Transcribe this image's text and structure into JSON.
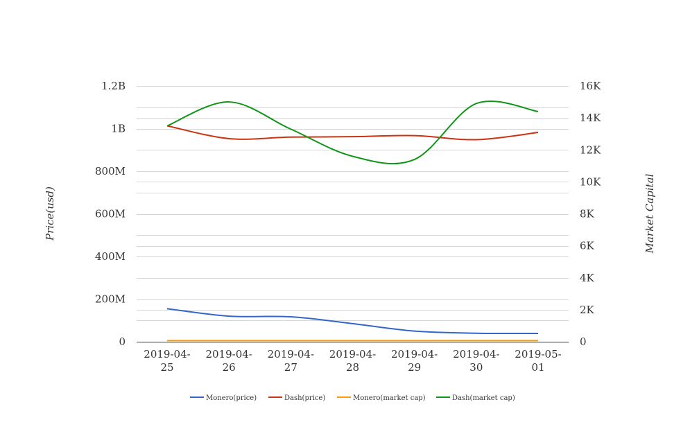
{
  "chart_data": {
    "type": "line",
    "x": [
      "2019-04-25",
      "2019-04-26",
      "2019-04-27",
      "2019-04-28",
      "2019-04-29",
      "2019-04-30",
      "2019-05-01"
    ],
    "x_tick_lines": [
      [
        "2019-04-",
        "25"
      ],
      [
        "2019-04-",
        "26"
      ],
      [
        "2019-04-",
        "27"
      ],
      [
        "2019-04-",
        "28"
      ],
      [
        "2019-04-",
        "29"
      ],
      [
        "2019-04-",
        "30"
      ],
      [
        "2019-05-",
        "01"
      ]
    ],
    "ylabel_left": "Price(usd)",
    "ylabel_right": "Market Capital",
    "y_left_ticks": [
      {
        "value": 0,
        "label": "0"
      },
      {
        "value": 200000000,
        "label": "200M"
      },
      {
        "value": 400000000,
        "label": "400M"
      },
      {
        "value": 600000000,
        "label": "600M"
      },
      {
        "value": 800000000,
        "label": "800M"
      },
      {
        "value": 1000000000,
        "label": "1B"
      },
      {
        "value": 1200000000,
        "label": "1.2B"
      }
    ],
    "y_right_ticks": [
      {
        "value": 0,
        "label": "0"
      },
      {
        "value": 2000,
        "label": "2K"
      },
      {
        "value": 4000,
        "label": "4K"
      },
      {
        "value": 6000,
        "label": "6K"
      },
      {
        "value": 8000,
        "label": "8K"
      },
      {
        "value": 10000,
        "label": "10K"
      },
      {
        "value": 12000,
        "label": "12K"
      },
      {
        "value": 14000,
        "label": "14K"
      },
      {
        "value": 16000,
        "label": "16K"
      }
    ],
    "ylim_left": [
      0,
      1200000000
    ],
    "ylim_right": [
      0,
      16000
    ],
    "grid": true,
    "legend_position": "bottom",
    "series": [
      {
        "name": "Monero(price)",
        "axis": "left",
        "color": "#3366cc",
        "values": [
          155000000,
          120000000,
          117000000,
          85000000,
          50000000,
          40000000,
          39000000
        ]
      },
      {
        "name": "Dash(price)",
        "axis": "left",
        "color": "#cc3311",
        "values": [
          1013000000,
          953000000,
          960000000,
          962000000,
          967000000,
          948000000,
          982000000
        ]
      },
      {
        "name": "Monero(market cap)",
        "axis": "right",
        "color": "#ff9900",
        "values": [
          70,
          70,
          70,
          70,
          70,
          70,
          70
        ]
      },
      {
        "name": "Dash(market cap)",
        "axis": "right",
        "color": "#109618",
        "values": [
          13500,
          15000,
          13300,
          11600,
          11400,
          14900,
          14400
        ]
      }
    ]
  }
}
